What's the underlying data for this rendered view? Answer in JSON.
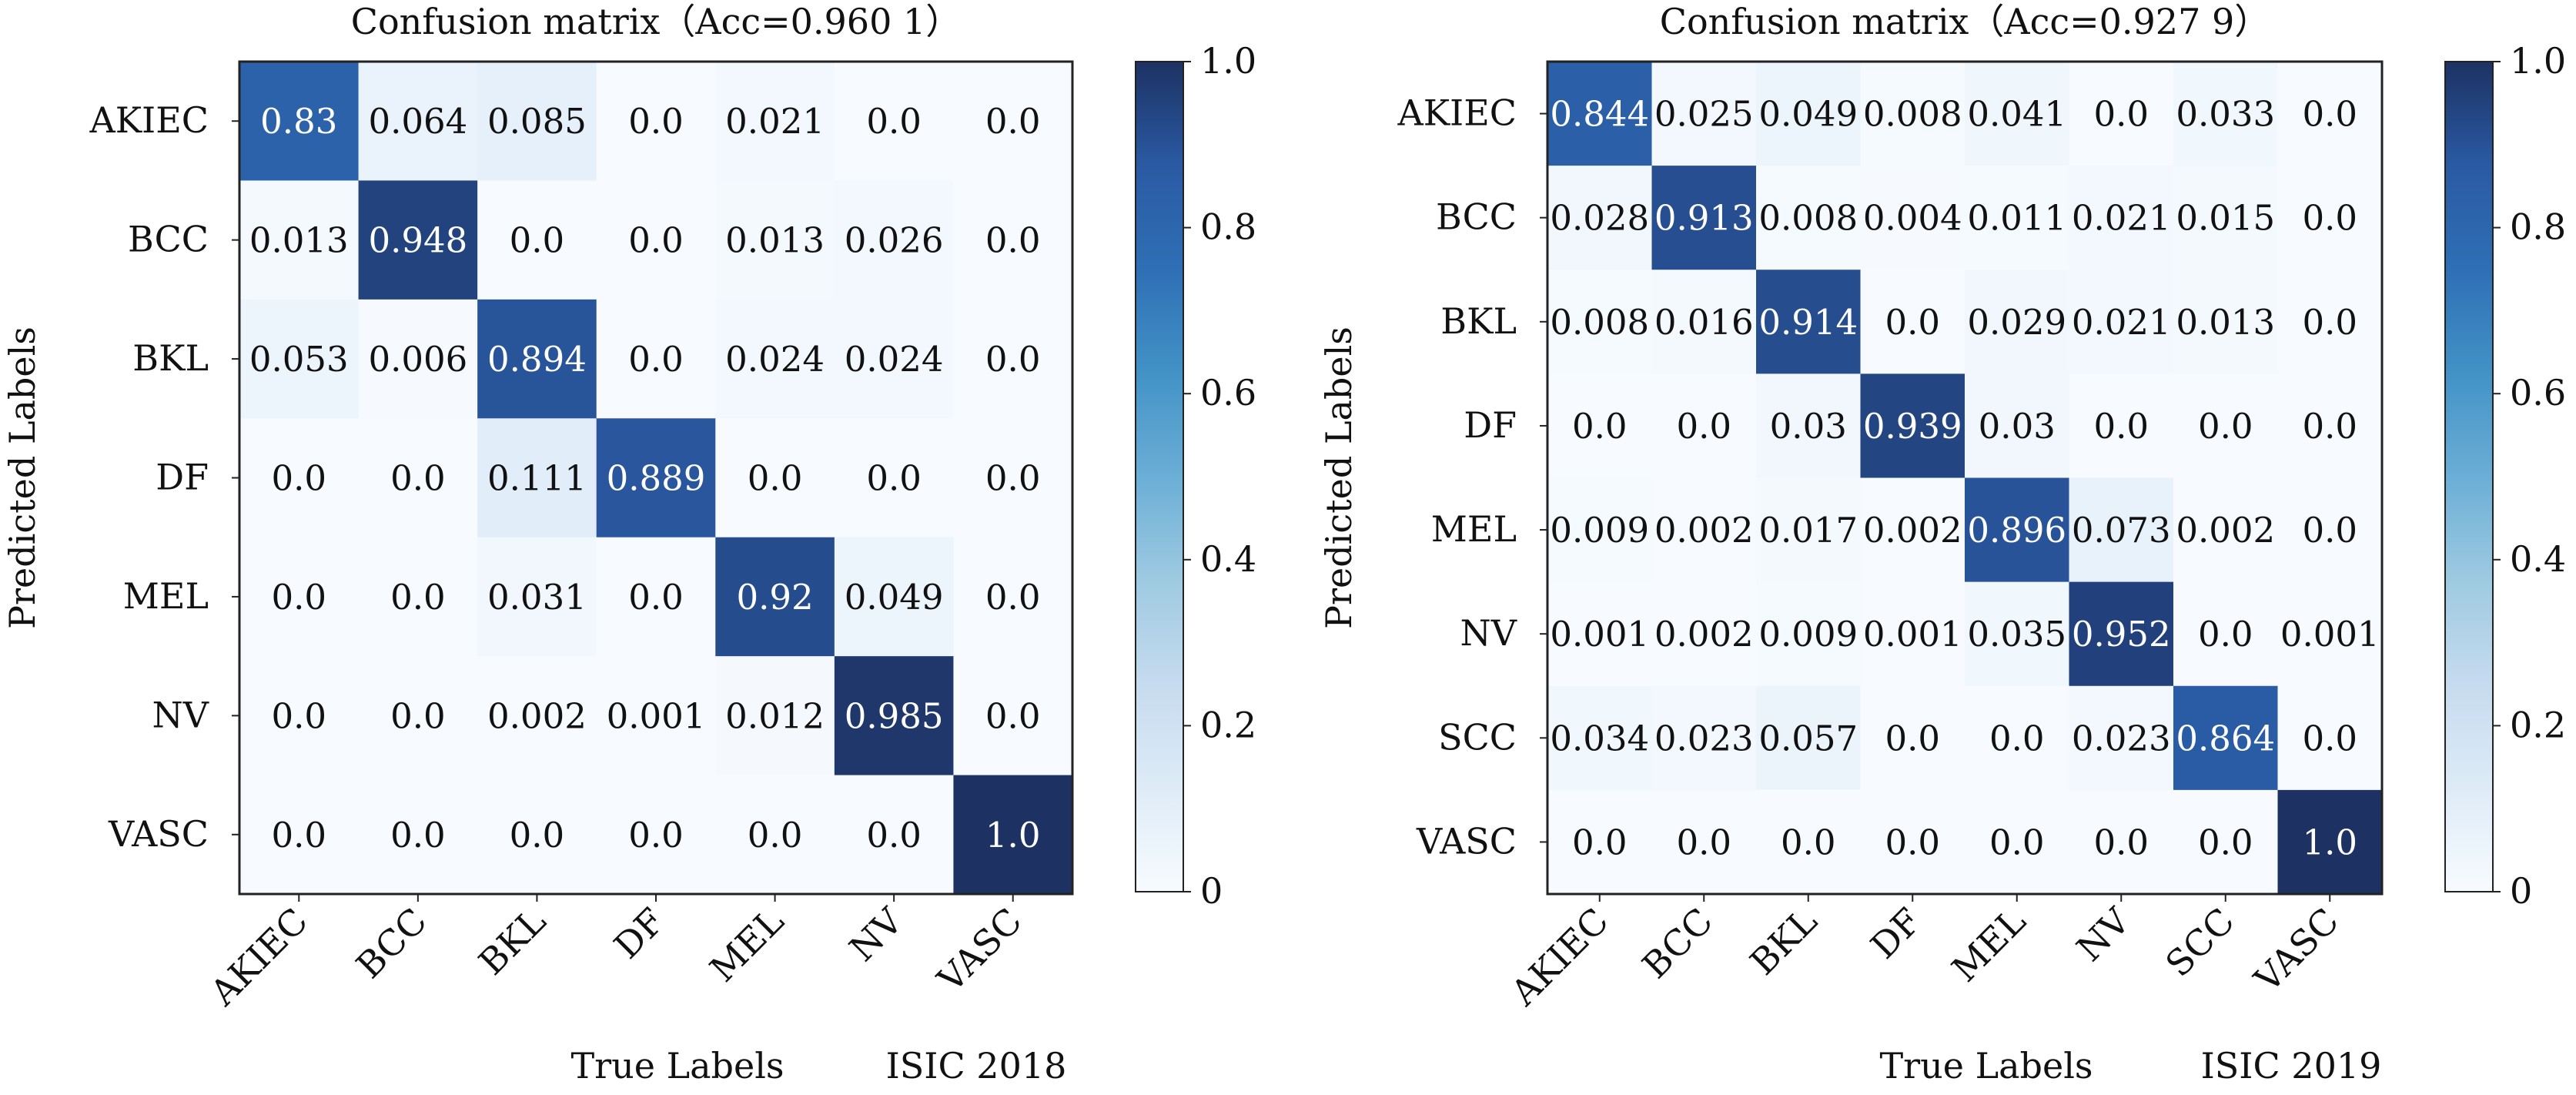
{
  "chart_data": [
    {
      "type": "heatmap",
      "title": "Confusion matrix（Acc=0.960 1）",
      "xlabel": "True Labels",
      "ylabel": "Predicted Labels",
      "caption": "ISIC 2018",
      "x_categories": [
        "AKIEC",
        "BCC",
        "BKL",
        "DF",
        "MEL",
        "NV",
        "VASC"
      ],
      "y_categories": [
        "AKIEC",
        "BCC",
        "BKL",
        "DF",
        "MEL",
        "NV",
        "VASC"
      ],
      "matrix": [
        [
          "0.83",
          "0.064",
          "0.085",
          "0.0",
          "0.021",
          "0.0",
          "0.0"
        ],
        [
          "0.013",
          "0.948",
          "0.0",
          "0.0",
          "0.013",
          "0.026",
          "0.0"
        ],
        [
          "0.053",
          "0.006",
          "0.894",
          "0.0",
          "0.024",
          "0.024",
          "0.0"
        ],
        [
          "0.0",
          "0.0",
          "0.111",
          "0.889",
          "0.0",
          "0.0",
          "0.0"
        ],
        [
          "0.0",
          "0.0",
          "0.031",
          "0.0",
          "0.92",
          "0.049",
          "0.0"
        ],
        [
          "0.0",
          "0.0",
          "0.002",
          "0.001",
          "0.012",
          "0.985",
          "0.0"
        ],
        [
          "0.0",
          "0.0",
          "0.0",
          "0.0",
          "0.0",
          "0.0",
          "1.0"
        ]
      ],
      "colorbar": {
        "range": [
          0,
          1
        ],
        "ticks": [
          "0",
          "0.2",
          "0.4",
          "0.6",
          "0.8",
          "1.0"
        ]
      },
      "colormap": "Blues"
    },
    {
      "type": "heatmap",
      "title": "Confusion matrix（Acc=0.927 9）",
      "xlabel": "True Labels",
      "ylabel": "Predicted Labels",
      "caption": "ISIC 2019",
      "x_categories": [
        "AKIEC",
        "BCC",
        "BKL",
        "DF",
        "MEL",
        "NV",
        "SCC",
        "VASC"
      ],
      "y_categories": [
        "AKIEC",
        "BCC",
        "BKL",
        "DF",
        "MEL",
        "NV",
        "SCC",
        "VASC"
      ],
      "matrix": [
        [
          "0.844",
          "0.025",
          "0.049",
          "0.008",
          "0.041",
          "0.0",
          "0.033",
          "0.0"
        ],
        [
          "0.028",
          "0.913",
          "0.008",
          "0.004",
          "0.011",
          "0.021",
          "0.015",
          "0.0"
        ],
        [
          "0.008",
          "0.016",
          "0.914",
          "0.0",
          "0.029",
          "0.021",
          "0.013",
          "0.0"
        ],
        [
          "0.0",
          "0.0",
          "0.03",
          "0.939",
          "0.03",
          "0.0",
          "0.0",
          "0.0"
        ],
        [
          "0.009",
          "0.002",
          "0.017",
          "0.002",
          "0.896",
          "0.073",
          "0.002",
          "0.0"
        ],
        [
          "0.001",
          "0.002",
          "0.009",
          "0.001",
          "0.035",
          "0.952",
          "0.0",
          "0.001"
        ],
        [
          "0.034",
          "0.023",
          "0.057",
          "0.0",
          "0.0",
          "0.023",
          "0.864",
          "0.0"
        ],
        [
          "0.0",
          "0.0",
          "0.0",
          "0.0",
          "0.0",
          "0.0",
          "0.0",
          "1.0"
        ]
      ],
      "colorbar": {
        "range": [
          0,
          1
        ],
        "ticks": [
          "0",
          "0.2",
          "0.4",
          "0.6",
          "0.8",
          "1.0"
        ]
      },
      "colormap": "Blues"
    }
  ]
}
